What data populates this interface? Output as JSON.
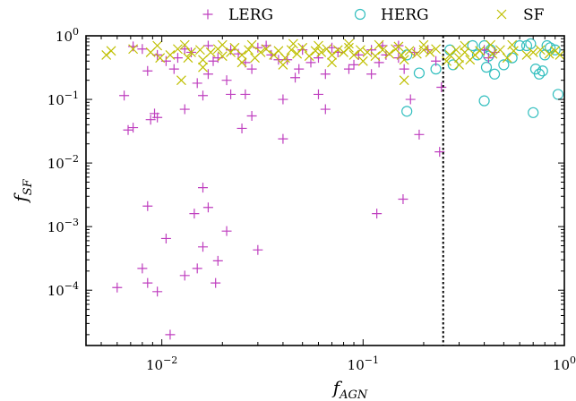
{
  "chart_data": {
    "type": "scatter",
    "x_scale": "log",
    "y_scale": "log",
    "xlim": [
      0.0042,
      1.0
    ],
    "ylim": [
      1.35e-05,
      1.0
    ],
    "xlabel": {
      "main": "f",
      "sub": "AGN"
    },
    "ylabel": {
      "main": "f",
      "sub": "SF"
    },
    "x_ticks": [
      {
        "value": 0.01,
        "base": "10",
        "exp": "−2"
      },
      {
        "value": 0.1,
        "base": "10",
        "exp": "−1"
      },
      {
        "value": 1,
        "base": "10",
        "exp": "0"
      }
    ],
    "y_ticks": [
      {
        "value": 0.0001,
        "base": "10",
        "exp": "−4"
      },
      {
        "value": 0.001,
        "base": "10",
        "exp": "−3"
      },
      {
        "value": 0.01,
        "base": "10",
        "exp": "−2"
      },
      {
        "value": 0.1,
        "base": "10",
        "exp": "−1"
      },
      {
        "value": 1,
        "base": "10",
        "exp": "0"
      }
    ],
    "threshold_line": {
      "x": 0.25,
      "style": "dotted",
      "color": "#000000"
    },
    "legend_position": "top (outside plot, horizontal)",
    "grid": false,
    "series": [
      {
        "name": "LERG",
        "marker": "plus",
        "color": "#bf3fbf",
        "points": [
          [
            0.006,
            0.00011
          ],
          [
            0.008,
            0.00022
          ],
          [
            0.0085,
            0.00013
          ],
          [
            0.0085,
            0.0021
          ],
          [
            0.0095,
            9.5e-05
          ],
          [
            0.011,
            2e-05
          ],
          [
            0.0105,
            0.00065
          ],
          [
            0.013,
            0.00017
          ],
          [
            0.015,
            0.00022
          ],
          [
            0.016,
            0.00048
          ],
          [
            0.0145,
            0.0016
          ],
          [
            0.016,
            0.0041
          ],
          [
            0.017,
            0.002
          ],
          [
            0.0185,
            0.00013
          ],
          [
            0.019,
            0.00029
          ],
          [
            0.021,
            0.00085
          ],
          [
            0.03,
            0.00043
          ],
          [
            0.0065,
            0.115
          ],
          [
            0.0068,
            0.033
          ],
          [
            0.0072,
            0.036
          ],
          [
            0.0088,
            0.048
          ],
          [
            0.0092,
            0.06
          ],
          [
            0.0095,
            0.052
          ],
          [
            0.013,
            0.07
          ],
          [
            0.016,
            0.115
          ],
          [
            0.022,
            0.12
          ],
          [
            0.025,
            0.035
          ],
          [
            0.026,
            0.12
          ],
          [
            0.028,
            0.055
          ],
          [
            0.04,
            0.024
          ],
          [
            0.04,
            0.1
          ],
          [
            0.06,
            0.12
          ],
          [
            0.065,
            0.07
          ],
          [
            0.117,
            0.0016
          ],
          [
            0.158,
            0.0027
          ],
          [
            0.19,
            0.028
          ],
          [
            0.24,
            0.015
          ],
          [
            0.245,
            0.155
          ],
          [
            0.172,
            0.1
          ],
          [
            0.11,
            0.25
          ],
          [
            0.065,
            0.25
          ],
          [
            0.028,
            0.3
          ],
          [
            0.017,
            0.25
          ],
          [
            0.0115,
            0.3
          ],
          [
            0.0085,
            0.28
          ],
          [
            0.008,
            0.62
          ],
          [
            0.0095,
            0.5
          ],
          [
            0.012,
            0.45
          ],
          [
            0.014,
            0.55
          ],
          [
            0.018,
            0.4
          ],
          [
            0.022,
            0.6
          ],
          [
            0.026,
            0.38
          ],
          [
            0.03,
            0.65
          ],
          [
            0.035,
            0.5
          ],
          [
            0.042,
            0.42
          ],
          [
            0.05,
            0.6
          ],
          [
            0.06,
            0.45
          ],
          [
            0.075,
            0.55
          ],
          [
            0.09,
            0.35
          ],
          [
            0.11,
            0.6
          ],
          [
            0.13,
            0.5
          ],
          [
            0.15,
            0.45
          ],
          [
            0.18,
            0.55
          ],
          [
            0.21,
            0.6
          ],
          [
            0.23,
            0.4
          ],
          [
            0.4,
            0.6
          ],
          [
            0.45,
            0.55
          ],
          [
            0.42,
            0.45
          ],
          [
            0.15,
            0.7
          ],
          [
            0.055,
            0.38
          ],
          [
            0.024,
            0.52
          ],
          [
            0.013,
            0.62
          ],
          [
            0.0105,
            0.4
          ],
          [
            0.0072,
            0.68
          ],
          [
            0.015,
            0.18
          ],
          [
            0.021,
            0.2
          ],
          [
            0.046,
            0.22
          ],
          [
            0.085,
            0.3
          ],
          [
            0.12,
            0.38
          ],
          [
            0.16,
            0.3
          ],
          [
            0.017,
            0.7
          ],
          [
            0.019,
            0.45
          ],
          [
            0.033,
            0.7
          ],
          [
            0.038,
            0.42
          ],
          [
            0.048,
            0.3
          ],
          [
            0.07,
            0.65
          ],
          [
            0.095,
            0.5
          ],
          [
            0.125,
            0.7
          ]
        ]
      },
      {
        "name": "HERG",
        "marker": "circle",
        "color": "#33bfbf",
        "points": [
          [
            0.165,
            0.065
          ],
          [
            0.165,
            0.5
          ],
          [
            0.19,
            0.26
          ],
          [
            0.23,
            0.3
          ],
          [
            0.27,
            0.6
          ],
          [
            0.28,
            0.35
          ],
          [
            0.35,
            0.7
          ],
          [
            0.37,
            0.5
          ],
          [
            0.4,
            0.095
          ],
          [
            0.41,
            0.32
          ],
          [
            0.4,
            0.7
          ],
          [
            0.42,
            0.48
          ],
          [
            0.43,
            0.6
          ],
          [
            0.45,
            0.25
          ],
          [
            0.5,
            0.35
          ],
          [
            0.55,
            0.45
          ],
          [
            0.6,
            0.7
          ],
          [
            0.65,
            0.7
          ],
          [
            0.68,
            0.75
          ],
          [
            0.7,
            0.062
          ],
          [
            0.72,
            0.3
          ],
          [
            0.75,
            0.25
          ],
          [
            0.78,
            0.28
          ],
          [
            0.8,
            0.5
          ],
          [
            0.82,
            0.7
          ],
          [
            0.9,
            0.6
          ],
          [
            0.93,
            0.12
          ],
          [
            0.85,
            0.65
          ]
        ]
      },
      {
        "name": "SF",
        "marker": "x",
        "color": "#bfbf00",
        "points": [
          [
            0.0053,
            0.5
          ],
          [
            0.0056,
            0.58
          ],
          [
            0.0072,
            0.62
          ],
          [
            0.0088,
            0.55
          ],
          [
            0.0098,
            0.45
          ],
          [
            0.011,
            0.5
          ],
          [
            0.012,
            0.62
          ],
          [
            0.0125,
            0.2
          ],
          [
            0.0135,
            0.45
          ],
          [
            0.014,
            0.55
          ],
          [
            0.0155,
            0.6
          ],
          [
            0.016,
            0.42
          ],
          [
            0.0175,
            0.55
          ],
          [
            0.019,
            0.62
          ],
          [
            0.02,
            0.48
          ],
          [
            0.022,
            0.55
          ],
          [
            0.023,
            0.65
          ],
          [
            0.025,
            0.5
          ],
          [
            0.027,
            0.6
          ],
          [
            0.029,
            0.45
          ],
          [
            0.031,
            0.55
          ],
          [
            0.033,
            0.62
          ],
          [
            0.036,
            0.5
          ],
          [
            0.038,
            0.58
          ],
          [
            0.041,
            0.45
          ],
          [
            0.044,
            0.6
          ],
          [
            0.047,
            0.52
          ],
          [
            0.05,
            0.65
          ],
          [
            0.054,
            0.48
          ],
          [
            0.058,
            0.58
          ],
          [
            0.062,
            0.55
          ],
          [
            0.066,
            0.62
          ],
          [
            0.07,
            0.5
          ],
          [
            0.075,
            0.6
          ],
          [
            0.08,
            0.55
          ],
          [
            0.085,
            0.65
          ],
          [
            0.09,
            0.5
          ],
          [
            0.097,
            0.6
          ],
          [
            0.105,
            0.55
          ],
          [
            0.115,
            0.48
          ],
          [
            0.125,
            0.6
          ],
          [
            0.135,
            0.52
          ],
          [
            0.145,
            0.62
          ],
          [
            0.155,
            0.5
          ],
          [
            0.17,
            0.58
          ],
          [
            0.185,
            0.52
          ],
          [
            0.2,
            0.6
          ],
          [
            0.215,
            0.55
          ],
          [
            0.23,
            0.62
          ],
          [
            0.27,
            0.5
          ],
          [
            0.29,
            0.6
          ],
          [
            0.3,
            0.45
          ],
          [
            0.32,
            0.55
          ],
          [
            0.34,
            0.42
          ],
          [
            0.36,
            0.5
          ],
          [
            0.38,
            0.58
          ],
          [
            0.44,
            0.52
          ],
          [
            0.48,
            0.6
          ],
          [
            0.52,
            0.45
          ],
          [
            0.56,
            0.58
          ],
          [
            0.65,
            0.5
          ],
          [
            0.7,
            0.55
          ],
          [
            0.76,
            0.6
          ],
          [
            0.84,
            0.52
          ],
          [
            0.9,
            0.58
          ],
          [
            0.95,
            0.5
          ],
          [
            0.3,
            0.35
          ],
          [
            0.26,
            0.4
          ],
          [
            0.16,
            0.42
          ],
          [
            0.1,
            0.4
          ],
          [
            0.07,
            0.38
          ],
          [
            0.04,
            0.35
          ],
          [
            0.025,
            0.38
          ],
          [
            0.016,
            0.32
          ],
          [
            0.02,
            0.72
          ],
          [
            0.045,
            0.75
          ],
          [
            0.085,
            0.75
          ],
          [
            0.12,
            0.72
          ],
          [
            0.2,
            0.72
          ],
          [
            0.32,
            0.7
          ],
          [
            0.55,
            0.72
          ],
          [
            0.0095,
            0.7
          ],
          [
            0.013,
            0.72
          ],
          [
            0.06,
            0.7
          ],
          [
            0.16,
            0.2
          ],
          [
            0.43,
            0.72
          ],
          [
            0.028,
            0.72
          ],
          [
            0.15,
            0.68
          ]
        ]
      }
    ]
  }
}
